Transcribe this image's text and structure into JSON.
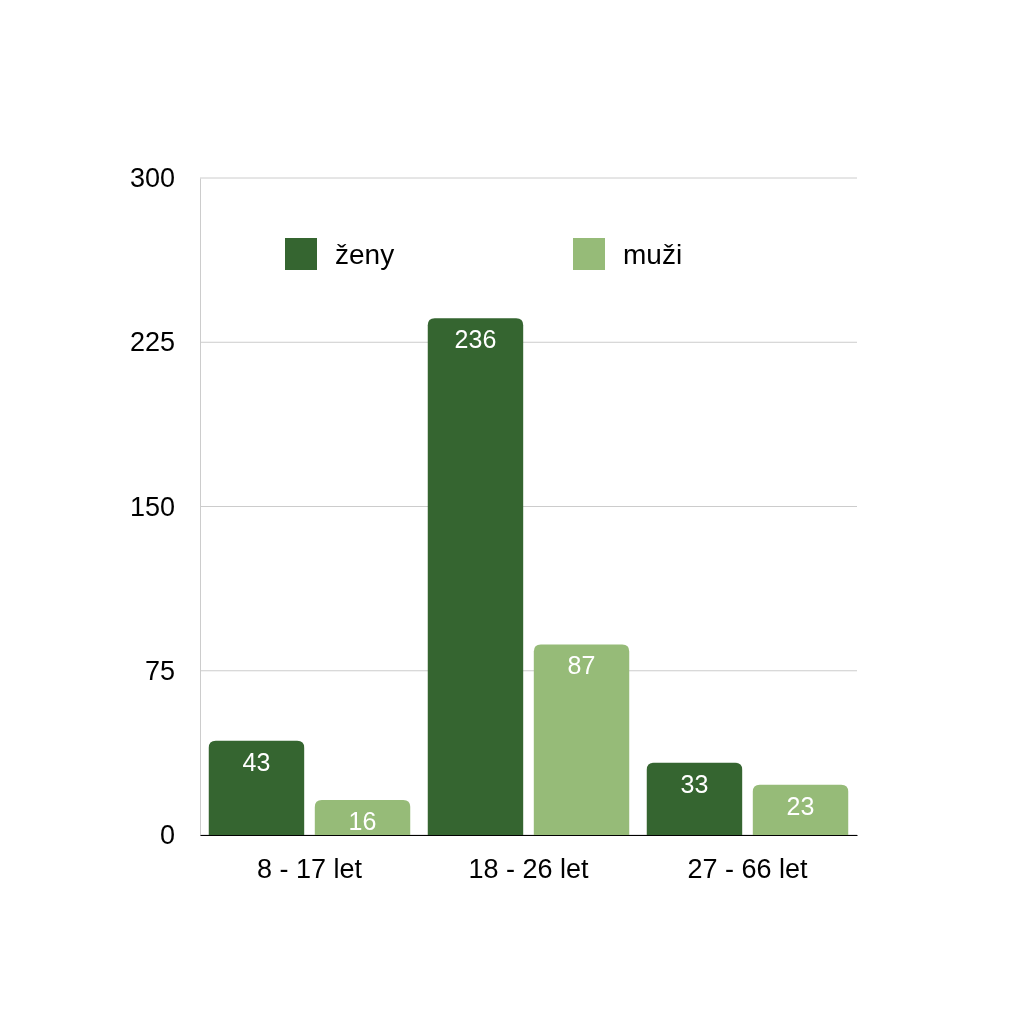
{
  "chart_data": {
    "type": "bar",
    "categories": [
      "8 - 17 let",
      "18 - 26 let",
      "27 - 66 let"
    ],
    "series": [
      {
        "name": "ženy",
        "color": "#356530",
        "values": [
          43,
          236,
          33
        ]
      },
      {
        "name": "muži",
        "color": "#96bb78",
        "values": [
          16,
          87,
          23
        ]
      }
    ],
    "ylim": [
      0,
      300
    ],
    "yticks": [
      0,
      75,
      150,
      225,
      300
    ],
    "grid": "y",
    "legend": "top",
    "data_labels": true
  }
}
